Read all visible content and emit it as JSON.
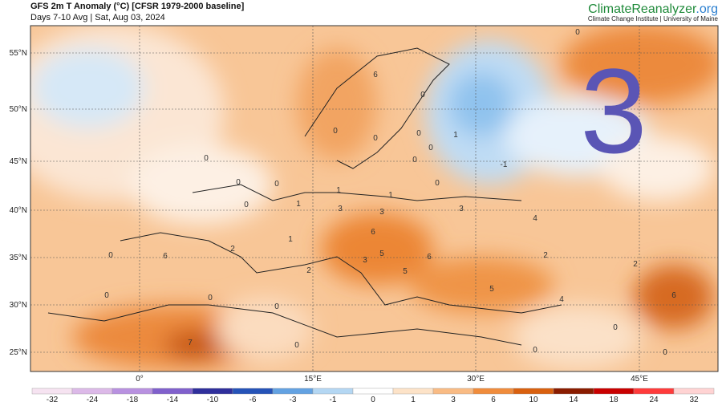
{
  "header": {
    "title": "GFS 2m T Anomaly (°C) [CFSR 1979-2000 baseline]",
    "subtitle": "Days 7-10 Avg | Sat, Aug 03, 2024",
    "brand": "ClimateReanalyzer",
    "brand_suffix": ".org",
    "brand_sub": "Climate Change Institute | University of Maine"
  },
  "overlay_number": "3",
  "lat_labels": [
    "55°N",
    "50°N",
    "45°N",
    "40°N",
    "35°N",
    "30°N",
    "25°N"
  ],
  "lon_labels": [
    "0°",
    "15°E",
    "30°E",
    "45°E"
  ],
  "map_labels": [
    "6",
    "0",
    "0",
    "0",
    "0",
    "0",
    "0",
    "1",
    "-1",
    "0",
    "0",
    "0",
    "0",
    "1",
    "1",
    "1",
    "3",
    "3",
    "3",
    "4",
    "6",
    "2",
    "6",
    "3",
    "5",
    "6",
    "5",
    "5",
    "4",
    "6",
    "7",
    "0",
    "0",
    "0",
    "0",
    "0",
    "0",
    "0",
    "0",
    "0",
    "2",
    "2",
    "0",
    "1",
    "2"
  ],
  "colorbar": {
    "labels": [
      -32,
      -24,
      -18,
      -14,
      -10,
      -6,
      -3,
      -1,
      0,
      1,
      3,
      6,
      10,
      14,
      18,
      24,
      32
    ],
    "colors": [
      "#f6e3f1",
      "#dcb9e8",
      "#b891e0",
      "#8060cc",
      "#2f2f9c",
      "#2553b8",
      "#63a2e2",
      "#b4d7f3",
      "#ffffff",
      "#fde3c8",
      "#f9bb84",
      "#f08c3c",
      "#d9600f",
      "#8a1c00",
      "#c90000",
      "#ff3b3b",
      "#ffd3d3"
    ]
  }
}
